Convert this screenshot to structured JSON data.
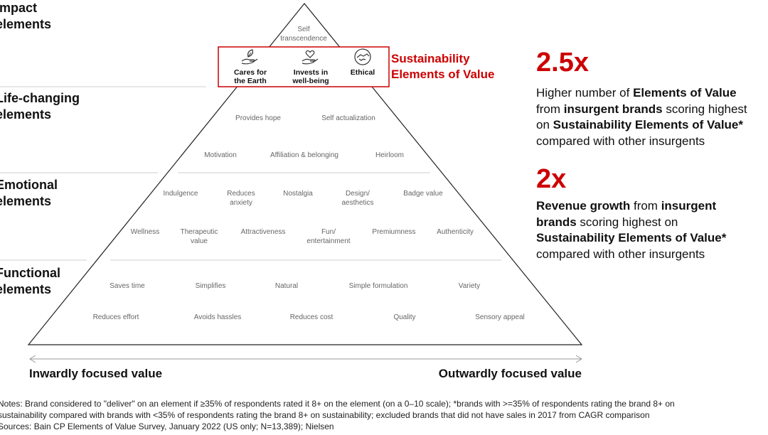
{
  "levels": {
    "impact": "Impact\nelements",
    "life_changing": "Life-changing\nelements",
    "emotional": "Emotional\nelements",
    "functional": "Functional\nelements"
  },
  "impact_elements": [
    "Self\ntranscendence"
  ],
  "sustainability": {
    "title": "Sustainability\nElements of Value",
    "elements": [
      "Cares for\nthe Earth",
      "Invests in\nwell-being",
      "Ethical"
    ],
    "icons": [
      "hand-leaf-icon",
      "hand-heart-icon",
      "handshake-icon"
    ],
    "color": "#cc0000"
  },
  "life_changing_elements": [
    "Provides hope",
    "Self actualization",
    "Motivation",
    "Affiliation & belonging",
    "Heirloom"
  ],
  "emotional_elements": [
    "Indulgence",
    "Reduces\nanxiety",
    "Nostalgia",
    "Design/\naesthetics",
    "Badge value",
    "Wellness",
    "Therapeutic\nvalue",
    "Attractiveness",
    "Fun/\nentertainment",
    "Premiumness",
    "Authenticity"
  ],
  "functional_elements": [
    "Saves time",
    "Simplifies",
    "Natural",
    "Simple formulation",
    "Variety",
    "Reduces effort",
    "Avoids hassles",
    "Reduces cost",
    "Quality",
    "Sensory appeal"
  ],
  "axis": {
    "left": "Inwardly focused value",
    "right": "Outwardly focused value"
  },
  "stats": [
    {
      "value": "2.5x",
      "text": [
        [
          "Higher number of ",
          false
        ],
        [
          "Elements of Value",
          true
        ],
        [
          "\n",
          false
        ],
        [
          "from ",
          false
        ],
        [
          "insurgent brands",
          true
        ],
        [
          " scoring highest",
          false
        ],
        [
          "\n",
          false
        ],
        [
          "on ",
          false
        ],
        [
          "Sustainability Elements of Value*",
          true
        ],
        [
          "\n",
          false
        ],
        [
          "compared with other insurgents",
          false
        ]
      ]
    },
    {
      "value": "2x",
      "text": [
        [
          "Revenue growth",
          true
        ],
        [
          " from ",
          false
        ],
        [
          "insurgent",
          true
        ],
        [
          "\n",
          false
        ],
        [
          "brands",
          true
        ],
        [
          " scoring highest on",
          false
        ],
        [
          "\n",
          false
        ],
        [
          "Sustainability Elements of Value*",
          true
        ],
        [
          "\n",
          false
        ],
        [
          "compared with other insurgents",
          false
        ]
      ]
    }
  ],
  "notes": [
    "Notes: Brand considered to \"deliver\" on an element if ≥35% of respondents rated it 8+ on the element (on a 0–10 scale); *brands with >=35% of respondents rating the brand 8+ on",
    "sustainability compared with brands with <35% of respondents rating the brand 8+ on sustainability; excluded brands that did not have sales in 2017 from CAGR comparison",
    "Sources: Bain CP Elements of Value Survey, January 2022 (US only; N=13,389); Nielsen"
  ]
}
